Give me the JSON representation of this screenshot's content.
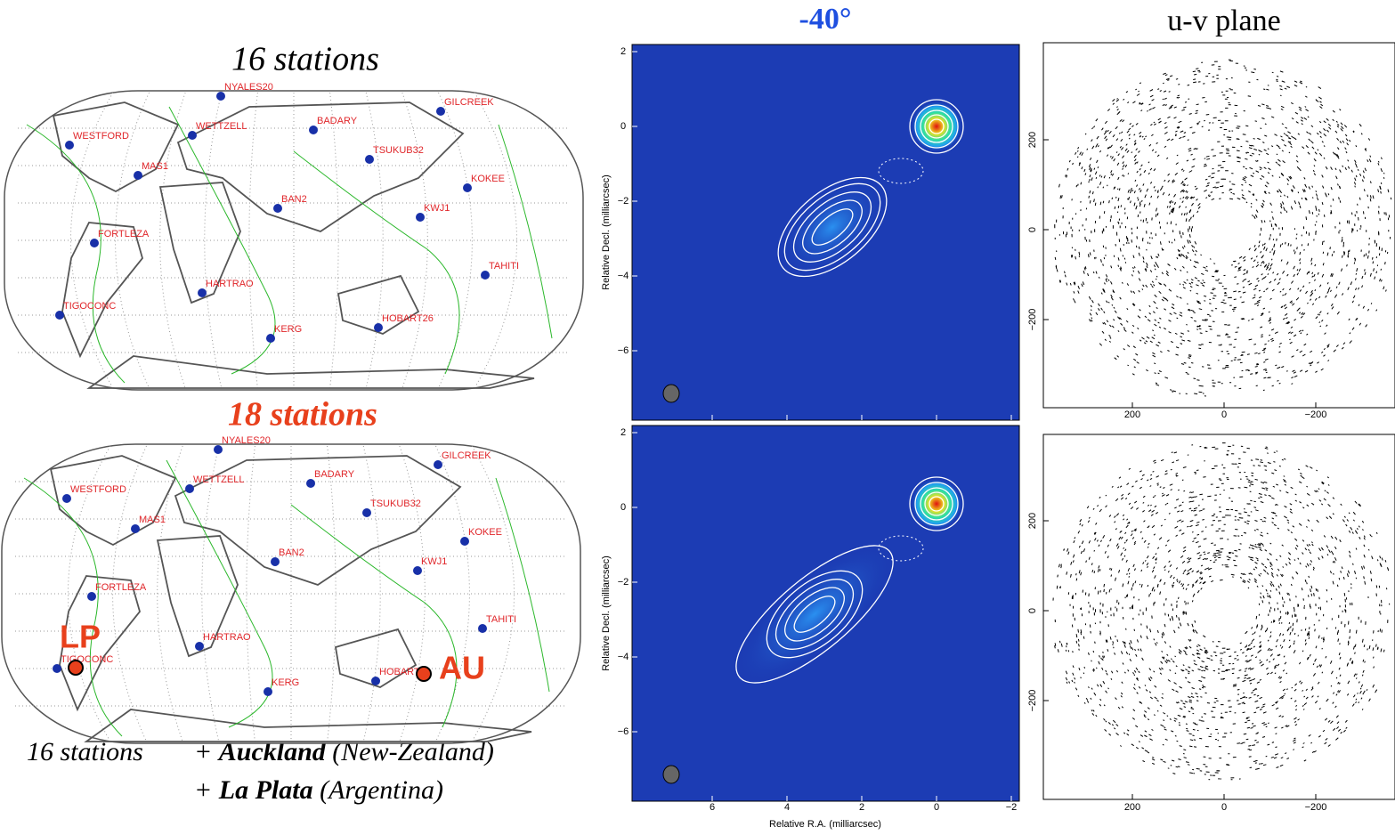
{
  "left": {
    "top_title": "16 stations",
    "bottom_title": "18 stations",
    "stations": [
      "NYALES20",
      "WETTZELL",
      "WESTFORD",
      "BADARY",
      "GILCREEK",
      "TSUKUB32",
      "MAS1",
      "KOKEE",
      "BAN2",
      "KWJ1",
      "FORTLEZA",
      "TAHITI",
      "HARTRAO",
      "TIGOCONC",
      "HOBART26",
      "KERG"
    ],
    "new_stations": [
      "LP",
      "AU"
    ],
    "caption": {
      "prefix": "16 stations",
      "plus1": "+",
      "name1": "Auckland",
      "country1": "(New-Zealand)",
      "plus2": "+",
      "name2": "La Plata",
      "country2": "(Argentina)"
    }
  },
  "middle": {
    "title": "-40°",
    "y_label": "Relative Decl. (milliarcsec)",
    "x_label": "Relative R.A. (milliarcsec)",
    "yticks": [
      "2",
      "0",
      "−2",
      "−4",
      "−6"
    ],
    "xticks": [
      "6",
      "4",
      "2",
      "0",
      "−2"
    ]
  },
  "right": {
    "title": "u-v plane",
    "yticks": [
      "200",
      "0",
      "−200"
    ],
    "xticks": [
      "200",
      "0",
      "−200"
    ]
  }
}
